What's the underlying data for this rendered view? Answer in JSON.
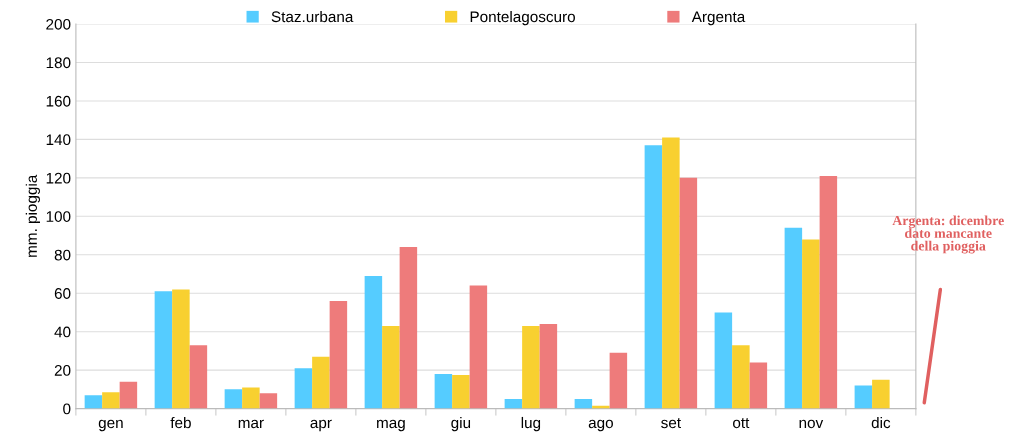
{
  "chart_data": {
    "type": "bar",
    "ylabel": "mm. pioggia",
    "categories": [
      "gen",
      "feb",
      "mar",
      "apr",
      "mag",
      "giu",
      "lug",
      "ago",
      "set",
      "ott",
      "nov",
      "dic"
    ],
    "series": [
      {
        "name": "Staz.urbana",
        "color": "#55ccff",
        "values": [
          7,
          61,
          10,
          21,
          69,
          18,
          5,
          5,
          137,
          50,
          94,
          12
        ]
      },
      {
        "name": "Pontelagoscuro",
        "color": "#f8d030",
        "values": [
          8.5,
          62,
          11,
          27,
          43,
          17.5,
          43,
          1.5,
          141,
          33,
          88,
          15
        ]
      },
      {
        "name": "Argenta",
        "color": "#ee7b7b",
        "values": [
          14,
          33,
          8,
          56,
          84,
          64,
          44,
          29,
          120,
          24,
          121,
          null
        ]
      }
    ],
    "ylim": [
      0,
      200
    ],
    "yticks": [
      0,
      20,
      40,
      60,
      80,
      100,
      120,
      140,
      160,
      180,
      200
    ],
    "grid": "y",
    "legend": "top",
    "annotations": [
      "Argenta: dicembre\ndato mancante\ndella pioggia"
    ]
  }
}
